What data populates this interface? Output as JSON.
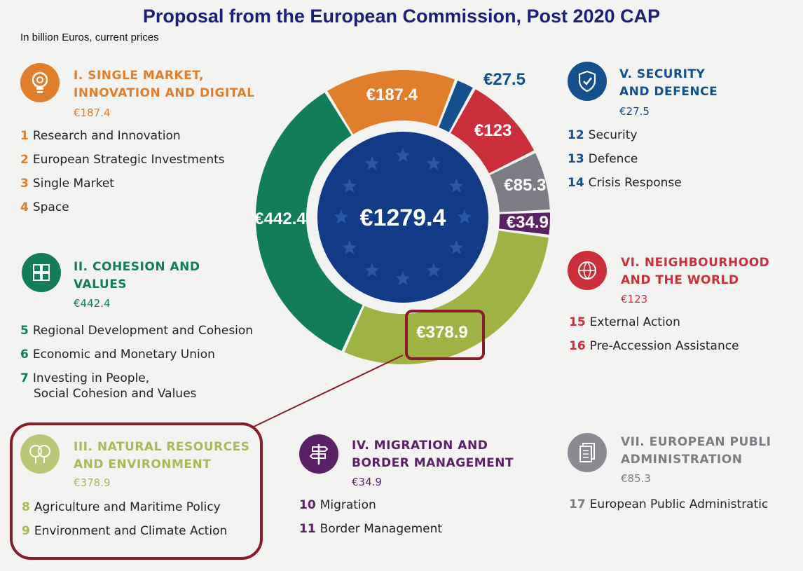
{
  "title": "Proposal from the European Commission, Post 2020 CAP",
  "subtitle": "In billion Euros, current prices",
  "total_label": "€1279.4",
  "colors": {
    "title": "#1b1f7a",
    "orange": "#e07e2c",
    "blue": "#154f8d",
    "red": "#cc2f3c",
    "grey": "#7c7c84",
    "purple": "#5b2166",
    "olive": "#9fb345",
    "green": "#137c5a",
    "center": "#123a86",
    "highlight": "#8b1a2a"
  },
  "chart_data": {
    "type": "pie",
    "donut": true,
    "title": "Proposal from the European Commission, Post 2020 CAP",
    "subtitle": "In billion Euros, current prices",
    "total": 1279.4,
    "segments": [
      {
        "name": "I. SINGLE MARKET, INNOVATION AND DIGITAL",
        "value": 187.4,
        "label": "€187.4",
        "color": "#e07e2c"
      },
      {
        "name": "V. SECURITY AND DEFENCE",
        "value": 27.5,
        "label": "€27.5",
        "color": "#154f8d"
      },
      {
        "name": "VI. NEIGHBOURHOOD AND THE WORLD",
        "value": 123,
        "label": "€123",
        "color": "#cc2f3c"
      },
      {
        "name": "VII. EUROPEAN PUBLI ADMINISTRATION",
        "value": 85.3,
        "label": "€85.3",
        "color": "#7c7c84"
      },
      {
        "name": "IV. MIGRATION AND BORDER MANAGEMENT",
        "value": 34.9,
        "label": "€34.9",
        "color": "#5b2166"
      },
      {
        "name": "III. NATURAL RESOURCES AND ENVIRONMENT",
        "value": 378.9,
        "label": "€378.9",
        "color": "#9fb345"
      },
      {
        "name": "II. COHESION AND VALUES",
        "value": 442.4,
        "label": "€442.4",
        "color": "#137c5a"
      }
    ]
  },
  "sections": {
    "s1": {
      "heading": [
        "I. SINGLE MARKET,",
        "INNOVATION AND DIGITAL"
      ],
      "amount": "€187.4",
      "items": [
        {
          "num": "1",
          "text": "Research and Innovation"
        },
        {
          "num": "2",
          "text": "European Strategic Investments"
        },
        {
          "num": "3",
          "text": "Single Market"
        },
        {
          "num": "4",
          "text": "Space"
        }
      ]
    },
    "s2": {
      "heading": [
        "II. COHESION AND",
        "VALUES"
      ],
      "amount": "€442.4",
      "items": [
        {
          "num": "5",
          "text": "Regional Development and Cohesion"
        },
        {
          "num": "6",
          "text": "Economic and Monetary Union"
        },
        {
          "num": "7",
          "text": "Investing in People,",
          "text2": "Social Cohesion and Values"
        }
      ]
    },
    "s3": {
      "heading": [
        "III. NATURAL RESOURCES",
        "AND ENVIRONMENT"
      ],
      "amount": "€378.9",
      "items": [
        {
          "num": "8",
          "text": "Agriculture and Maritime Policy"
        },
        {
          "num": "9",
          "text": "Environment and Climate Action"
        }
      ]
    },
    "s4": {
      "heading": [
        "IV. MIGRATION AND",
        "BORDER MANAGEMENT"
      ],
      "amount": "€34.9",
      "items": [
        {
          "num": "10",
          "text": "Migration"
        },
        {
          "num": "11",
          "text": "Border Management"
        }
      ]
    },
    "s5": {
      "heading": [
        "V. SECURITY",
        "AND DEFENCE"
      ],
      "amount": "€27.5",
      "items": [
        {
          "num": "12",
          "text": "Security"
        },
        {
          "num": "13",
          "text": "Defence"
        },
        {
          "num": "14",
          "text": "Crisis Response"
        }
      ]
    },
    "s6": {
      "heading": [
        "VI. NEIGHBOURHOOD",
        "AND THE WORLD"
      ],
      "amount": "€123",
      "items": [
        {
          "num": "15",
          "text": "External Action"
        },
        {
          "num": "16",
          "text": "Pre-Accession Assistance"
        }
      ]
    },
    "s7": {
      "heading": [
        "VII. EUROPEAN PUBLI",
        "ADMINISTRATION"
      ],
      "amount": "€85.3",
      "items": [
        {
          "num": "17",
          "text": "European Public Administratic"
        }
      ]
    }
  },
  "icons": {
    "s1": "lightbulb-icon",
    "s2": "puzzle-icon",
    "s3": "trees-icon",
    "s4": "signpost-icon",
    "s5": "shield-check-icon",
    "s6": "globe-pin-icon",
    "s7": "documents-icon"
  }
}
